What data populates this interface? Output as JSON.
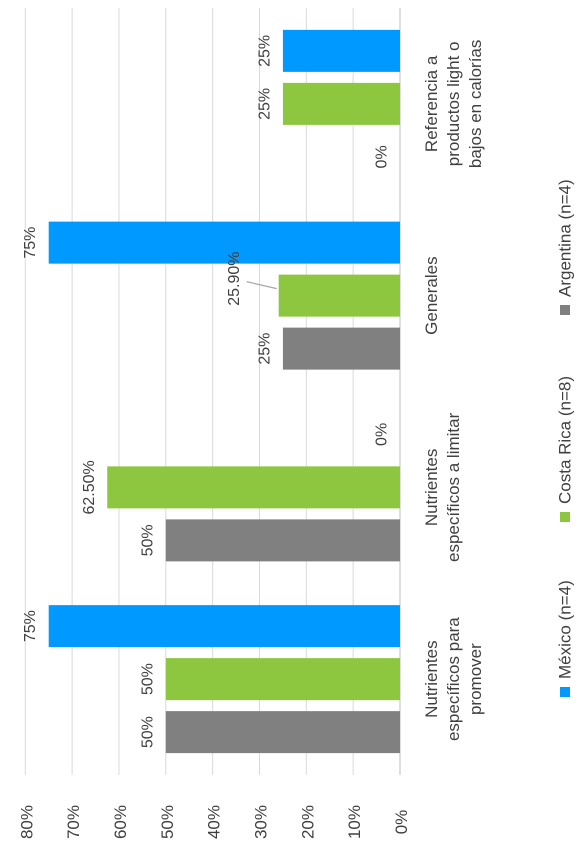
{
  "chart_data": {
    "type": "bar",
    "orientation": "rotated-90-counterclockwise",
    "categories": [
      [
        "Nutrientes",
        "específicos para",
        "promover"
      ],
      [
        "Nutrientes",
        "específicos a limitar"
      ],
      [
        "Generales"
      ],
      [
        "Referencia a",
        "productos light o",
        "bajos en calorías"
      ]
    ],
    "series": [
      {
        "name": "México (n=4)",
        "color": "#0099ff",
        "values": [
          75,
          0,
          75,
          25
        ],
        "labels": [
          "75%",
          "0%",
          "75%",
          "25%"
        ]
      },
      {
        "name": "Costa Rica (n=8)",
        "color": "#8dc63f",
        "values": [
          50,
          62.5,
          25.9,
          25
        ],
        "labels": [
          "50%",
          "62.50%",
          "25.90%",
          "25%"
        ]
      },
      {
        "name": "Argentina (n=4)",
        "color": "#808080",
        "values": [
          50,
          50,
          25,
          0
        ],
        "labels": [
          "50%",
          "50%",
          "25%",
          "0%"
        ]
      }
    ],
    "value_ticks": [
      "0%",
      "10%",
      "20%",
      "30%",
      "40%",
      "50%",
      "60%",
      "70%",
      "80%"
    ],
    "ylim": [
      0,
      80
    ],
    "grid": true,
    "legend_position": "bottom"
  }
}
